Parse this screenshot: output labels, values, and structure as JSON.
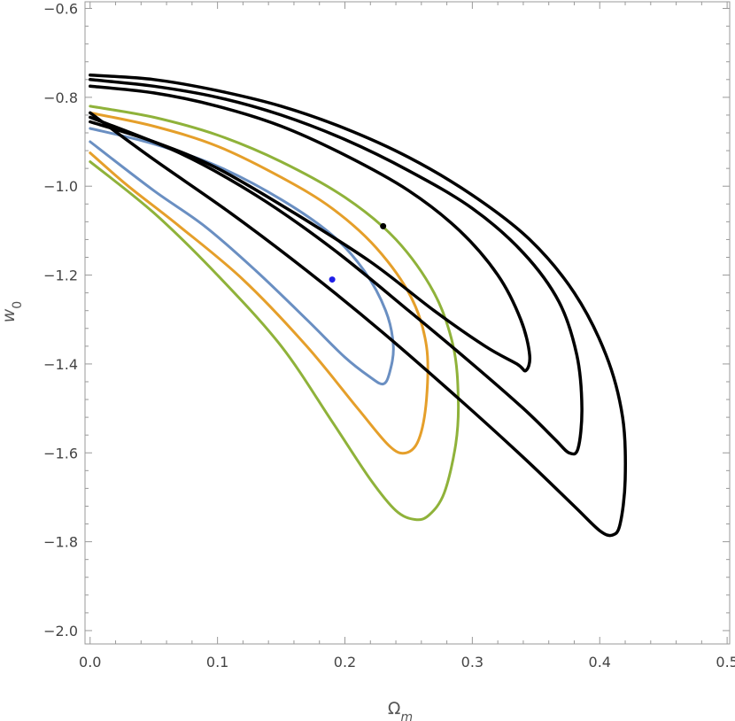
{
  "chart_data": {
    "type": "line",
    "xlabel": "Ω",
    "xlabel_sub": "m",
    "ylabel": "w",
    "ylabel_sub": "0",
    "xlim": [
      -0.004,
      0.502
    ],
    "ylim": [
      -2.03,
      -0.585
    ],
    "x_ticks": [
      0.0,
      0.1,
      0.2,
      0.3,
      0.4,
      0.5
    ],
    "x_tick_labels": [
      "0.0",
      "0.1",
      "0.2",
      "0.3",
      "0.4",
      "0.5"
    ],
    "y_ticks": [
      -2.0,
      -1.8,
      -1.6,
      -1.4,
      -1.2,
      -1.0,
      -0.8,
      -0.6
    ],
    "y_tick_labels": [
      "−2.0",
      "−1.8",
      "−1.6",
      "−1.4",
      "−1.2",
      "−1.0",
      "−0.8",
      "−0.6"
    ],
    "grid": false,
    "colors": {
      "blue": "#6a8fc2",
      "orange": "#e59f2a",
      "green": "#8fb23a",
      "black": "#000000",
      "best_fit_blue": "#1f1fe8",
      "best_fit_black": "#000000"
    },
    "series": [
      {
        "color": "blue",
        "width": 3,
        "points": [
          [
            0.0,
            -0.87
          ],
          [
            0.05,
            -0.905
          ],
          [
            0.1,
            -0.955
          ],
          [
            0.15,
            -1.03
          ],
          [
            0.19,
            -1.11
          ],
          [
            0.215,
            -1.19
          ],
          [
            0.232,
            -1.28
          ],
          [
            0.238,
            -1.36
          ],
          [
            0.235,
            -1.42
          ],
          [
            0.23,
            -1.445
          ],
          [
            0.22,
            -1.43
          ],
          [
            0.2,
            -1.385
          ],
          [
            0.17,
            -1.3
          ],
          [
            0.13,
            -1.19
          ],
          [
            0.09,
            -1.09
          ],
          [
            0.05,
            -1.01
          ],
          [
            0.0,
            -0.9
          ]
        ]
      },
      {
        "color": "orange",
        "width": 3,
        "points": [
          [
            0.0,
            -0.835
          ],
          [
            0.05,
            -0.865
          ],
          [
            0.1,
            -0.91
          ],
          [
            0.15,
            -0.98
          ],
          [
            0.19,
            -1.05
          ],
          [
            0.225,
            -1.14
          ],
          [
            0.252,
            -1.25
          ],
          [
            0.264,
            -1.36
          ],
          [
            0.264,
            -1.48
          ],
          [
            0.258,
            -1.57
          ],
          [
            0.248,
            -1.6
          ],
          [
            0.235,
            -1.585
          ],
          [
            0.21,
            -1.5
          ],
          [
            0.17,
            -1.36
          ],
          [
            0.12,
            -1.21
          ],
          [
            0.07,
            -1.09
          ],
          [
            0.03,
            -1.0
          ],
          [
            0.0,
            -0.925
          ]
        ]
      },
      {
        "color": "green",
        "width": 3,
        "points": [
          [
            0.0,
            -0.82
          ],
          [
            0.05,
            -0.845
          ],
          [
            0.1,
            -0.885
          ],
          [
            0.15,
            -0.945
          ],
          [
            0.2,
            -1.025
          ],
          [
            0.24,
            -1.12
          ],
          [
            0.27,
            -1.24
          ],
          [
            0.285,
            -1.36
          ],
          [
            0.289,
            -1.48
          ],
          [
            0.287,
            -1.58
          ],
          [
            0.278,
            -1.69
          ],
          [
            0.266,
            -1.74
          ],
          [
            0.255,
            -1.75
          ],
          [
            0.24,
            -1.73
          ],
          [
            0.22,
            -1.66
          ],
          [
            0.19,
            -1.53
          ],
          [
            0.15,
            -1.36
          ],
          [
            0.1,
            -1.2
          ],
          [
            0.05,
            -1.06
          ],
          [
            0.0,
            -0.945
          ]
        ]
      },
      {
        "color": "black",
        "width": 3.5,
        "points": [
          [
            0.0,
            -0.775
          ],
          [
            0.05,
            -0.79
          ],
          [
            0.1,
            -0.82
          ],
          [
            0.15,
            -0.865
          ],
          [
            0.2,
            -0.93
          ],
          [
            0.25,
            -1.01
          ],
          [
            0.29,
            -1.1
          ],
          [
            0.32,
            -1.2
          ],
          [
            0.338,
            -1.3
          ],
          [
            0.345,
            -1.38
          ],
          [
            0.342,
            -1.415
          ],
          [
            0.335,
            -1.4
          ],
          [
            0.31,
            -1.36
          ],
          [
            0.27,
            -1.28
          ],
          [
            0.22,
            -1.17
          ],
          [
            0.16,
            -1.06
          ],
          [
            0.1,
            -0.96
          ],
          [
            0.05,
            -0.9
          ],
          [
            0.0,
            -0.855
          ]
        ]
      },
      {
        "color": "black",
        "width": 3.5,
        "points": [
          [
            0.0,
            -0.76
          ],
          [
            0.05,
            -0.775
          ],
          [
            0.1,
            -0.8
          ],
          [
            0.15,
            -0.84
          ],
          [
            0.2,
            -0.895
          ],
          [
            0.25,
            -0.965
          ],
          [
            0.3,
            -1.05
          ],
          [
            0.34,
            -1.15
          ],
          [
            0.368,
            -1.26
          ],
          [
            0.382,
            -1.38
          ],
          [
            0.386,
            -1.5
          ],
          [
            0.383,
            -1.59
          ],
          [
            0.376,
            -1.6
          ],
          [
            0.365,
            -1.57
          ],
          [
            0.34,
            -1.5
          ],
          [
            0.3,
            -1.4
          ],
          [
            0.25,
            -1.28
          ],
          [
            0.19,
            -1.14
          ],
          [
            0.13,
            -1.02
          ],
          [
            0.07,
            -0.925
          ],
          [
            0.0,
            -0.845
          ]
        ]
      },
      {
        "color": "black",
        "width": 3.5,
        "points": [
          [
            0.0,
            -0.75
          ],
          [
            0.05,
            -0.76
          ],
          [
            0.1,
            -0.785
          ],
          [
            0.15,
            -0.82
          ],
          [
            0.2,
            -0.87
          ],
          [
            0.25,
            -0.935
          ],
          [
            0.3,
            -1.02
          ],
          [
            0.345,
            -1.12
          ],
          [
            0.38,
            -1.24
          ],
          [
            0.405,
            -1.38
          ],
          [
            0.418,
            -1.52
          ],
          [
            0.42,
            -1.66
          ],
          [
            0.416,
            -1.76
          ],
          [
            0.41,
            -1.785
          ],
          [
            0.4,
            -1.775
          ],
          [
            0.38,
            -1.72
          ],
          [
            0.34,
            -1.61
          ],
          [
            0.29,
            -1.48
          ],
          [
            0.23,
            -1.33
          ],
          [
            0.17,
            -1.19
          ],
          [
            0.11,
            -1.06
          ],
          [
            0.05,
            -0.94
          ],
          [
            0.0,
            -0.835
          ]
        ]
      }
    ],
    "points": [
      {
        "color": "best_fit_blue",
        "x": 0.19,
        "y": -1.21
      },
      {
        "color": "best_fit_black",
        "x": 0.23,
        "y": -1.09
      }
    ]
  }
}
